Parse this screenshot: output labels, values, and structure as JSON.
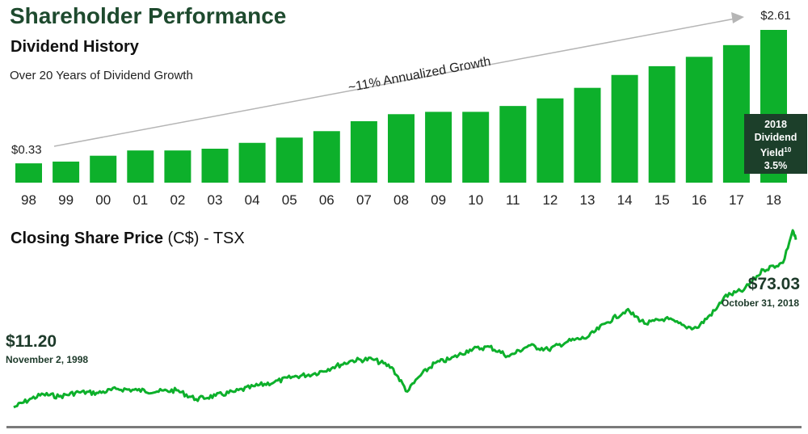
{
  "header": {
    "title": "Shareholder Performance",
    "subtitle": "Dividend History",
    "caption": "Over 20 Years of Dividend Growth"
  },
  "chart_data": [
    {
      "type": "bar",
      "title": "Dividend History",
      "subtitle": "Over 20 Years of Dividend Growth",
      "categories": [
        "98",
        "99",
        "00",
        "01",
        "02",
        "03",
        "04",
        "05",
        "06",
        "07",
        "08",
        "09",
        "10",
        "11",
        "12",
        "13",
        "14",
        "15",
        "16",
        "17",
        "18"
      ],
      "values": [
        0.33,
        0.36,
        0.46,
        0.55,
        0.55,
        0.58,
        0.68,
        0.77,
        0.88,
        1.05,
        1.17,
        1.21,
        1.21,
        1.31,
        1.44,
        1.62,
        1.84,
        1.99,
        2.15,
        2.35,
        2.61
      ],
      "data_labels": {
        "first": "$0.33",
        "last": "$2.61"
      },
      "annotation": "~11% Annualized Growth",
      "ylim": [
        0,
        2.8
      ],
      "grid": false,
      "bar_color": "#0db02b",
      "yield_box": {
        "line1": "2018",
        "line2": "Dividend",
        "line3": "Yield",
        "footnote": "10",
        "value": "3.5%"
      }
    },
    {
      "type": "line",
      "title_bold": "Closing Share Price",
      "title_rest": " (C$) - TSX",
      "line_color": "#0db02b",
      "x": [
        1998.84,
        1999.3,
        1999.6,
        2000.0,
        2000.5,
        2001.0,
        2001.5,
        2002.0,
        2002.5,
        2003.0,
        2003.5,
        2004.0,
        2004.5,
        2005.0,
        2005.5,
        2006.0,
        2006.5,
        2007.0,
        2007.5,
        2008.0,
        2008.5,
        2008.9,
        2009.2,
        2009.6,
        2010.0,
        2010.5,
        2011.0,
        2011.5,
        2012.0,
        2012.5,
        2013.0,
        2013.5,
        2014.0,
        2014.5,
        2015.0,
        2015.5,
        2016.0,
        2016.3,
        2016.8,
        2017.0,
        2017.5,
        2018.0,
        2018.5,
        2018.75,
        2018.83
      ],
      "y": [
        11.2,
        14.5,
        16.0,
        15.2,
        16.8,
        16.5,
        18.0,
        17.5,
        17.0,
        17.5,
        14.2,
        15.5,
        17.0,
        19.0,
        20.5,
        22.5,
        23.5,
        26.0,
        28.5,
        29.0,
        26.0,
        17.0,
        22.5,
        27.5,
        29.0,
        32.5,
        33.5,
        30.0,
        34.0,
        32.5,
        35.5,
        37.0,
        42.5,
        47.0,
        42.0,
        44.0,
        41.0,
        40.5,
        47.5,
        52.0,
        54.5,
        62.0,
        64.5,
        76.5,
        73.03
      ],
      "start": {
        "value": "$11.20",
        "date": "November 2, 1998"
      },
      "end": {
        "value": "$73.03",
        "date": "October 31, 2018"
      },
      "ylim": [
        8,
        80
      ],
      "grid": false
    }
  ]
}
